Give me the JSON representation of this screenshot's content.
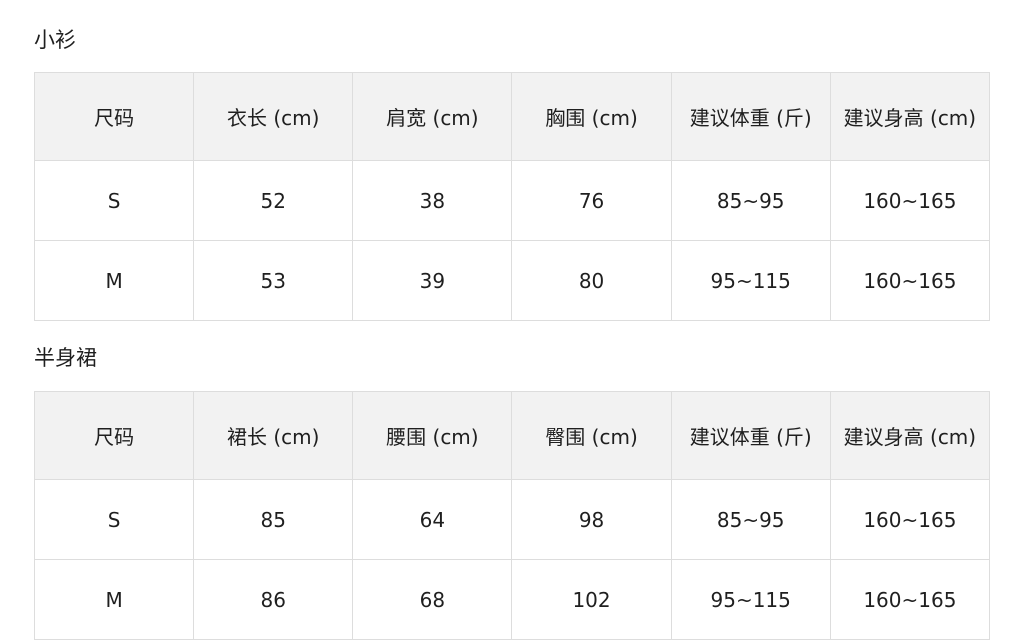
{
  "sections": [
    {
      "title": "小衫",
      "headers": [
        "尺码",
        "衣长 (cm)",
        "肩宽 (cm)",
        "胸围 (cm)",
        "建议体重 (斤)",
        "建议身高 (cm)"
      ],
      "rows": [
        [
          "S",
          "52",
          "38",
          "76",
          "85~95",
          "160~165"
        ],
        [
          "M",
          "53",
          "39",
          "80",
          "95~115",
          "160~165"
        ]
      ]
    },
    {
      "title": "半身裙",
      "headers": [
        "尺码",
        "裙长 (cm)",
        "腰围 (cm)",
        "臀围 (cm)",
        "建议体重 (斤)",
        "建议身高 (cm)"
      ],
      "rows": [
        [
          "S",
          "85",
          "64",
          "98",
          "85~95",
          "160~165"
        ],
        [
          "M",
          "86",
          "68",
          "102",
          "95~115",
          "160~165"
        ]
      ]
    }
  ]
}
